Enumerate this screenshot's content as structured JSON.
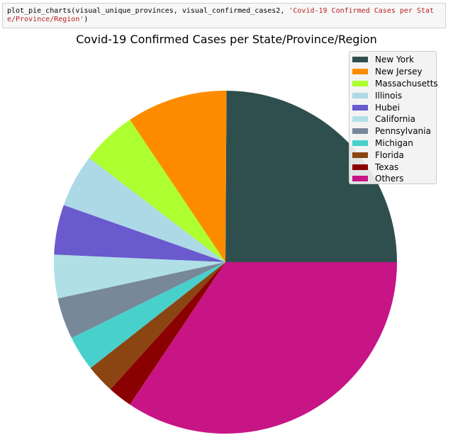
{
  "code_cell": {
    "code_prefix": "plot_pie_charts(visual_unique_provinces, visual_confirmed_cases2, ",
    "code_string": "'Covid-19 Confirmed Cases per State/Province/Region'",
    "code_suffix": ")"
  },
  "chart_data": {
    "type": "pie",
    "title": "Covid-19 Confirmed Cases per State/Province/Region",
    "labels": [
      "New York",
      "New Jersey",
      "Massachusetts",
      "Illinois",
      "Hubei",
      "California",
      "Pennsylvania",
      "Michigan",
      "Florida",
      "Texas",
      "Others"
    ],
    "values": [
      24.9,
      9.5,
      5.2,
      5.0,
      4.7,
      4.1,
      3.9,
      3.3,
      2.7,
      2.3,
      34.4
    ],
    "colors": [
      "#2f4f4f",
      "#ff8c00",
      "#adff2f",
      "#add8e6",
      "#6a5acd",
      "#b0e0e6",
      "#778899",
      "#48d1cc",
      "#8b4513",
      "#8b0000",
      "#c71585"
    ],
    "start_angle": 0,
    "direction": "counterclockwise",
    "legend_position": "top-right"
  }
}
